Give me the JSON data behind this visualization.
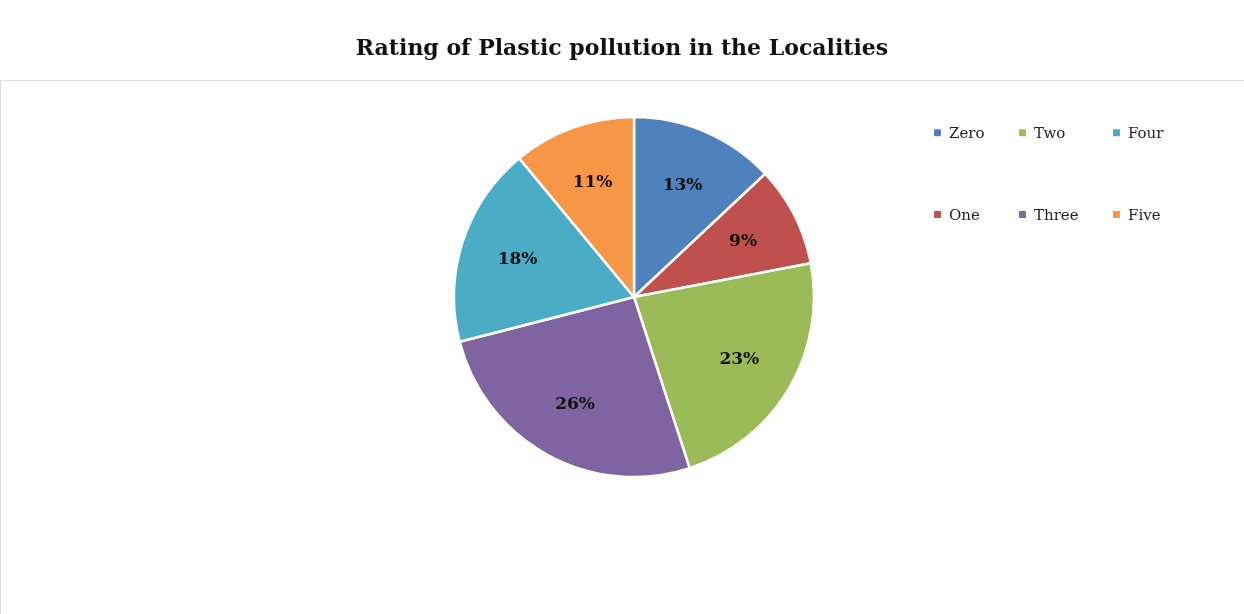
{
  "chart_data": {
    "type": "pie",
    "title": "Rating of Plastic pollution in the Localities",
    "categories": [
      "Zero",
      "One",
      "Two",
      "Three",
      "Four",
      "Five"
    ],
    "values": [
      13,
      9,
      23,
      26,
      18,
      11
    ],
    "value_labels": [
      "13%",
      "9%",
      "23%",
      "26%",
      "18%",
      "11%"
    ],
    "colors": [
      "#4f81bd",
      "#c0504d",
      "#9bbb59",
      "#8064a2",
      "#4bacc6",
      "#f79646"
    ],
    "legend": "top right"
  }
}
